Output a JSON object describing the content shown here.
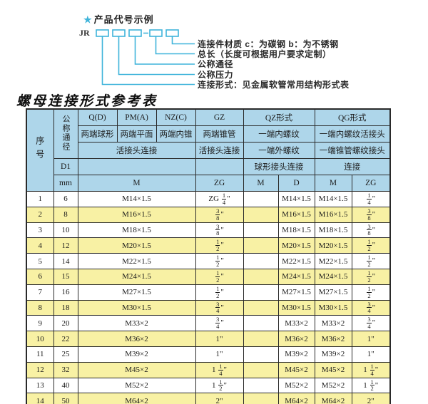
{
  "colors": {
    "header_bg": "#aed6ea",
    "alt_row_bg": "#f8f1a4",
    "diagram_line": "#3fb4da",
    "table_border": "#2a2a2a"
  },
  "diagram": {
    "star": "★",
    "title": "产品代号示例",
    "prefix": "JR",
    "labels": [
      "连接件材质  c：为碳钢  b：为不锈钢",
      "总长（长度可根据用户要求定制）",
      "公称通径",
      "公称压力",
      "连接形式：见金属软管常用结构形式表"
    ]
  },
  "table": {
    "title": "螺母连接形式参考表",
    "inch_mark": "\"",
    "header": {
      "seq": "序号",
      "diameter": "公称通径",
      "d1": "D1",
      "mm": "mm",
      "col_q": "Q(D)",
      "col_pm": "PM(A)",
      "col_nz": "NZ(C)",
      "col_gz": "GZ",
      "col_qz": "QZ形式",
      "col_qg": "QG形式",
      "q_desc": "两端球形",
      "pm_desc": "两端平面",
      "nz_desc": "两端内锥",
      "gz_desc": "两端锥管",
      "qz_desc1": "一端内螺纹",
      "qg_desc1": "一端内螺纹活接头",
      "union_conn": "活接头连接",
      "gz_conn": "活接头连接",
      "qz_desc2": "一端外螺纹",
      "qg_desc2": "一端锥管螺纹接头",
      "qz_conn": "球形接头连接",
      "qg_conn": "连接",
      "m_label": "M",
      "zg_label": "ZG",
      "qz_m": "M",
      "qz_d": "D",
      "qg_m": "M",
      "qg_zg": "ZG"
    },
    "rows": [
      {
        "seq": "1",
        "dn": "6",
        "m": "M14×1.5",
        "gz": {
          "prefix": "ZG",
          "num": "1",
          "den": "4"
        },
        "qz_m": "",
        "qz_d": "M14×1.5",
        "qg_m": "M14×1.5",
        "qg_zg": {
          "num": "1",
          "den": "4"
        }
      },
      {
        "seq": "2",
        "dn": "8",
        "m": "M16×1.5",
        "gz": {
          "num": "3",
          "den": "8"
        },
        "qz_m": "",
        "qz_d": "M16×1.5",
        "qg_m": "M16×1.5",
        "qg_zg": {
          "num": "3",
          "den": "8"
        }
      },
      {
        "seq": "3",
        "dn": "10",
        "m": "M18×1.5",
        "gz": {
          "num": "3",
          "den": "8"
        },
        "qz_m": "",
        "qz_d": "M18×1.5",
        "qg_m": "M18×1.5",
        "qg_zg": {
          "num": "3",
          "den": "8"
        }
      },
      {
        "seq": "4",
        "dn": "12",
        "m": "M20×1.5",
        "gz": {
          "num": "1",
          "den": "2"
        },
        "qz_m": "",
        "qz_d": "M20×1.5",
        "qg_m": "M20×1.5",
        "qg_zg": {
          "num": "1",
          "den": "2"
        }
      },
      {
        "seq": "5",
        "dn": "14",
        "m": "M22×1.5",
        "gz": {
          "num": "1",
          "den": "2"
        },
        "qz_m": "",
        "qz_d": "M22×1.5",
        "qg_m": "M22×1.5",
        "qg_zg": {
          "num": "1",
          "den": "2"
        }
      },
      {
        "seq": "6",
        "dn": "15",
        "m": "M24×1.5",
        "gz": {
          "num": "1",
          "den": "2"
        },
        "qz_m": "",
        "qz_d": "M24×1.5",
        "qg_m": "M24×1.5",
        "qg_zg": {
          "num": "1",
          "den": "2"
        }
      },
      {
        "seq": "7",
        "dn": "16",
        "m": "M27×1.5",
        "gz": {
          "num": "1",
          "den": "2"
        },
        "qz_m": "",
        "qz_d": "M27×1.5",
        "qg_m": "M27×1.5",
        "qg_zg": {
          "num": "1",
          "den": "2"
        }
      },
      {
        "seq": "8",
        "dn": "18",
        "m": "M30×1.5",
        "gz": {
          "num": "3",
          "den": "4"
        },
        "qz_m": "",
        "qz_d": "M30×1.5",
        "qg_m": "M30×1.5",
        "qg_zg": {
          "num": "3",
          "den": "4"
        }
      },
      {
        "seq": "9",
        "dn": "20",
        "m": "M33×2",
        "gz": {
          "num": "3",
          "den": "4"
        },
        "qz_m": "",
        "qz_d": "M33×2",
        "qg_m": "M33×2",
        "qg_zg": {
          "num": "3",
          "den": "4"
        }
      },
      {
        "seq": "10",
        "dn": "22",
        "m": "M36×2",
        "gz": {
          "whole": "1"
        },
        "qz_m": "",
        "qz_d": "M36×2",
        "qg_m": "M36×2",
        "qg_zg": {
          "whole": "1"
        }
      },
      {
        "seq": "11",
        "dn": "25",
        "m": "M39×2",
        "gz": {
          "whole": "1"
        },
        "qz_m": "",
        "qz_d": "M39×2",
        "qg_m": "M39×2",
        "qg_zg": {
          "whole": "1"
        }
      },
      {
        "seq": "12",
        "dn": "32",
        "m": "M45×2",
        "gz": {
          "whole": "1",
          "num": "1",
          "den": "4"
        },
        "qz_m": "",
        "qz_d": "M45×2",
        "qg_m": "M45×2",
        "qg_zg": {
          "whole": "1",
          "num": "1",
          "den": "4"
        }
      },
      {
        "seq": "13",
        "dn": "40",
        "m": "M52×2",
        "gz": {
          "whole": "1",
          "num": "1",
          "den": "2"
        },
        "qz_m": "",
        "qz_d": "M52×2",
        "qg_m": "M52×2",
        "qg_zg": {
          "whole": "1",
          "num": "1",
          "den": "2"
        }
      },
      {
        "seq": "14",
        "dn": "50",
        "m": "M64×2",
        "gz": {
          "whole": "2"
        },
        "qz_m": "",
        "qz_d": "M64×2",
        "qg_m": "M64×2",
        "qg_zg": {
          "whole": "2"
        }
      }
    ]
  }
}
